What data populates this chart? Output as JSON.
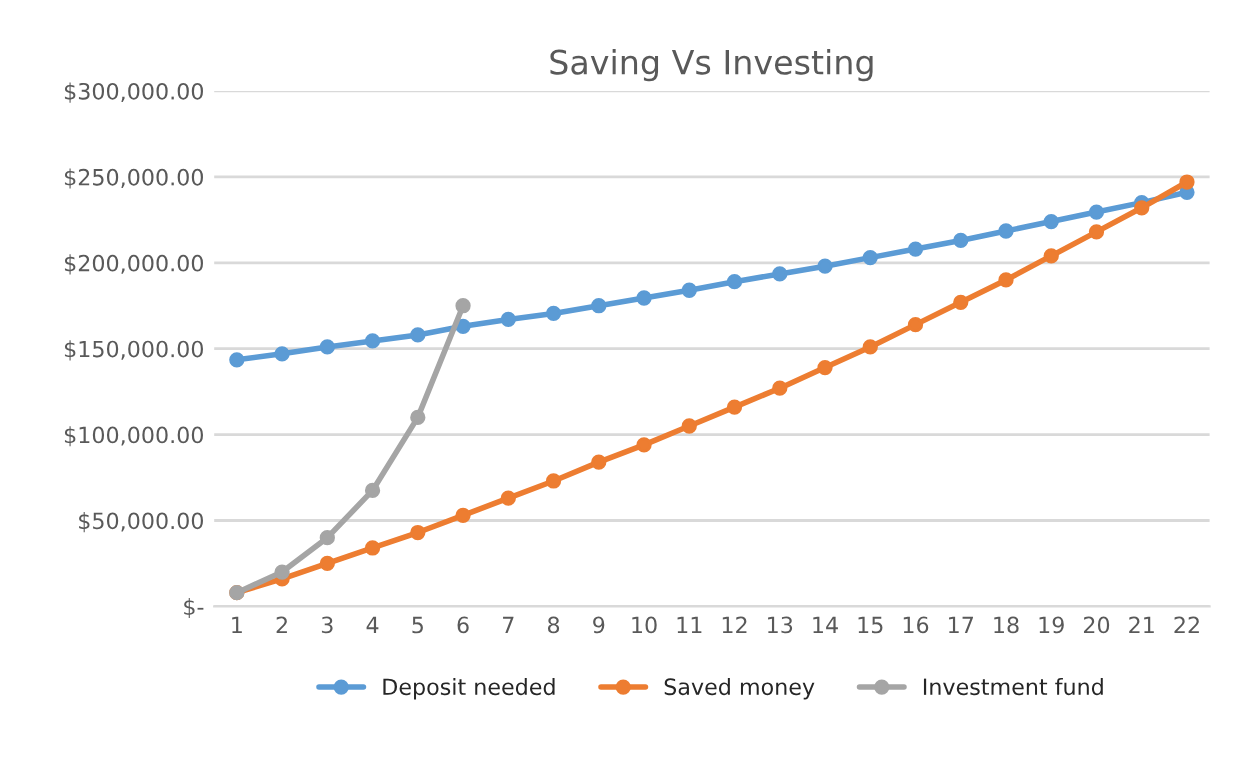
{
  "chart_data": {
    "type": "line",
    "title": "Saving Vs Investing",
    "categories": [
      "1",
      "2",
      "3",
      "4",
      "5",
      "6",
      "7",
      "8",
      "9",
      "10",
      "11",
      "12",
      "13",
      "14",
      "15",
      "16",
      "17",
      "18",
      "19",
      "20",
      "21",
      "22"
    ],
    "series": [
      {
        "name": "Deposit needed",
        "color": "#5b9bd5",
        "values": [
          143500,
          147000,
          151000,
          154500,
          158000,
          163000,
          167000,
          170500,
          175000,
          179500,
          184000,
          189000,
          193500,
          198000,
          203000,
          208000,
          213000,
          218500,
          224000,
          229500,
          235000,
          241000
        ]
      },
      {
        "name": "Saved money",
        "color": "#ed7d31",
        "values": [
          8000,
          16000,
          25000,
          34000,
          43000,
          53000,
          63000,
          73000,
          84000,
          94000,
          105000,
          116000,
          127000,
          139000,
          151000,
          164000,
          177000,
          190000,
          204000,
          218000,
          232000,
          247000
        ]
      },
      {
        "name": "Investment fund",
        "color": "#a5a5a5",
        "values": [
          8000,
          20000,
          40000,
          67500,
          110000,
          175000,
          null,
          null,
          null,
          null,
          null,
          null,
          null,
          null,
          null,
          null,
          null,
          null,
          null,
          null,
          null,
          null
        ]
      }
    ],
    "ylim": [
      0,
      300000
    ],
    "yticks": [
      {
        "value": 0,
        "label": "$-"
      },
      {
        "value": 50000,
        "label": "$50,000.00"
      },
      {
        "value": 100000,
        "label": "$100,000.00"
      },
      {
        "value": 150000,
        "label": "$150,000.00"
      },
      {
        "value": 200000,
        "label": "$200,000.00"
      },
      {
        "value": 250000,
        "label": "$250,000.00"
      },
      {
        "value": 300000,
        "label": "$300,000.00"
      }
    ],
    "grid": "y",
    "legend": "bottom",
    "marker": "circle",
    "line_style": "solid"
  }
}
